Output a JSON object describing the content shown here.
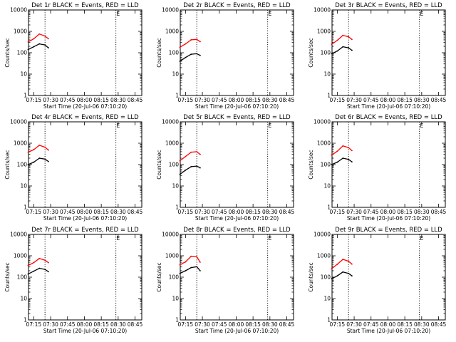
{
  "layout_spec": {
    "x_domain_min": [
      7,
      10,
      20
    ],
    "x_domain_max": [
      8,
      51,
      0
    ]
  },
  "chart_data": [
    {
      "type": "line",
      "title": "Det 1r BLACK = Events, RED = LLD",
      "xlabel": "Start Time (20-Jul-06 07:10:20)",
      "ylabel": "Counts/sec",
      "x_ticks": [
        "07:15",
        "07:30",
        "07:45",
        "08:00",
        "08:15",
        "08:30",
        "08:45"
      ],
      "y_ticks": [
        "1",
        "10",
        "100",
        "1000",
        "10000"
      ],
      "yscale": "log",
      "ylim": [
        1,
        10000
      ],
      "vlines": [
        "07:25",
        "08:28"
      ],
      "e_marker": {
        "label": "E",
        "time": "08:30"
      },
      "series": [
        {
          "color": "#000000",
          "x": [
            "07:10",
            "07:15",
            "07:20",
            "07:25",
            "07:28"
          ],
          "values": [
            140,
            190,
            260,
            230,
            170
          ]
        },
        {
          "color": "#ff0000",
          "x": [
            "07:10",
            "07:15",
            "07:20",
            "07:25",
            "07:28"
          ],
          "values": [
            320,
            450,
            750,
            600,
            450
          ]
        }
      ]
    },
    {
      "type": "line",
      "title": "Det 2r BLACK = Events, RED = LLD",
      "xlabel": "Start Time (20-Jul-06 07:10:20)",
      "ylabel": "Counts/sec",
      "x_ticks": [
        "07:15",
        "07:30",
        "07:45",
        "08:00",
        "08:15",
        "08:30",
        "08:45"
      ],
      "y_ticks": [
        "1",
        "10",
        "100",
        "1000",
        "10000"
      ],
      "yscale": "log",
      "ylim": [
        1,
        10000
      ],
      "vlines": [
        "07:25",
        "08:28"
      ],
      "e_marker": {
        "label": "E",
        "time": "08:30"
      },
      "series": [
        {
          "color": "#000000",
          "x": [
            "07:10",
            "07:15",
            "07:20",
            "07:25",
            "07:28"
          ],
          "values": [
            40,
            60,
            85,
            90,
            75
          ]
        },
        {
          "color": "#ff0000",
          "x": [
            "07:10",
            "07:15",
            "07:20",
            "07:25",
            "07:28"
          ],
          "values": [
            180,
            260,
            400,
            420,
            330
          ]
        }
      ]
    },
    {
      "type": "line",
      "title": "Det 3r BLACK = Events, RED = LLD",
      "xlabel": "Start Time (20-Jul-06 07:10:20)",
      "ylabel": "Counts/sec",
      "x_ticks": [
        "07:15",
        "07:30",
        "07:45",
        "08:00",
        "08:15",
        "08:30",
        "08:45"
      ],
      "y_ticks": [
        "1",
        "10",
        "100",
        "1000",
        "10000"
      ],
      "yscale": "log",
      "ylim": [
        1,
        10000
      ],
      "vlines": [
        "07:25",
        "08:28"
      ],
      "e_marker": {
        "label": "E",
        "time": "08:30"
      },
      "series": [
        {
          "color": "#000000",
          "x": [
            "07:10",
            "07:15",
            "07:20",
            "07:25",
            "07:28"
          ],
          "values": [
            90,
            120,
            190,
            170,
            130
          ]
        },
        {
          "color": "#ff0000",
          "x": [
            "07:10",
            "07:15",
            "07:20",
            "07:25",
            "07:28"
          ],
          "values": [
            250,
            380,
            650,
            560,
            420
          ]
        }
      ]
    },
    {
      "type": "line",
      "title": "Det 4r BLACK = Events, RED = LLD",
      "xlabel": "Start Time (20-Jul-06 07:10:20)",
      "ylabel": "Counts/sec",
      "x_ticks": [
        "07:15",
        "07:30",
        "07:45",
        "08:00",
        "08:15",
        "08:30",
        "08:45"
      ],
      "y_ticks": [
        "1",
        "10",
        "100",
        "1000",
        "10000"
      ],
      "yscale": "log",
      "ylim": [
        1,
        10000
      ],
      "vlines": [
        "07:25",
        "08:28"
      ],
      "e_marker": {
        "label": "E",
        "time": "08:30"
      },
      "series": [
        {
          "color": "#000000",
          "x": [
            "07:10",
            "07:15",
            "07:20",
            "07:25",
            "07:28"
          ],
          "values": [
            100,
            130,
            200,
            180,
            140
          ]
        },
        {
          "color": "#ff0000",
          "x": [
            "07:10",
            "07:15",
            "07:20",
            "07:25",
            "07:28"
          ],
          "values": [
            380,
            500,
            800,
            650,
            480
          ]
        }
      ]
    },
    {
      "type": "line",
      "title": "Det 5r BLACK = Events, RED = LLD",
      "xlabel": "Start Time (20-Jul-06 07:10:20)",
      "ylabel": "Counts/sec",
      "x_ticks": [
        "07:15",
        "07:30",
        "07:45",
        "08:00",
        "08:15",
        "08:30",
        "08:45"
      ],
      "y_ticks": [
        "1",
        "10",
        "100",
        "1000",
        "10000"
      ],
      "yscale": "log",
      "ylim": [
        1,
        10000
      ],
      "vlines": [
        "07:25",
        "08:28"
      ],
      "e_marker": {
        "label": "E",
        "time": "08:30"
      },
      "series": [
        {
          "color": "#000000",
          "x": [
            "07:10",
            "07:15",
            "07:20",
            "07:25",
            "07:28"
          ],
          "values": [
            35,
            55,
            80,
            85,
            70
          ]
        },
        {
          "color": "#ff0000",
          "x": [
            "07:10",
            "07:15",
            "07:20",
            "07:25",
            "07:28"
          ],
          "values": [
            150,
            240,
            380,
            400,
            300
          ]
        }
      ]
    },
    {
      "type": "line",
      "title": "Det 6r BLACK = Events, RED = LLD",
      "xlabel": "Start Time (20-Jul-06 07:10:20)",
      "ylabel": "Counts/sec",
      "x_ticks": [
        "07:15",
        "07:30",
        "07:45",
        "08:00",
        "08:15",
        "08:30",
        "08:45"
      ],
      "y_ticks": [
        "1",
        "10",
        "100",
        "1000",
        "10000"
      ],
      "yscale": "log",
      "ylim": [
        1,
        10000
      ],
      "vlines": [
        "07:25",
        "08:28"
      ],
      "e_marker": {
        "label": "E",
        "time": "08:30"
      },
      "series": [
        {
          "color": "#000000",
          "x": [
            "07:10",
            "07:15",
            "07:20",
            "07:25",
            "07:28"
          ],
          "values": [
            100,
            130,
            200,
            175,
            135
          ]
        },
        {
          "color": "#ff0000",
          "x": [
            "07:10",
            "07:15",
            "07:20",
            "07:25",
            "07:28"
          ],
          "values": [
            280,
            420,
            750,
            620,
            450
          ]
        }
      ]
    },
    {
      "type": "line",
      "title": "Det 7r BLACK = Events, RED = LLD",
      "xlabel": "Start Time (20-Jul-06 07:10:20)",
      "ylabel": "Counts/sec",
      "x_ticks": [
        "07:15",
        "07:30",
        "07:45",
        "08:00",
        "08:15",
        "08:30",
        "08:45"
      ],
      "y_ticks": [
        "1",
        "10",
        "100",
        "1000",
        "10000"
      ],
      "yscale": "log",
      "ylim": [
        1,
        10000
      ],
      "vlines": [
        "07:25",
        "08:28"
      ],
      "e_marker": {
        "label": "E",
        "time": "08:30"
      },
      "series": [
        {
          "color": "#000000",
          "x": [
            "07:10",
            "07:15",
            "07:20",
            "07:25",
            "07:28"
          ],
          "values": [
            140,
            190,
            260,
            230,
            180
          ]
        },
        {
          "color": "#ff0000",
          "x": [
            "07:10",
            "07:15",
            "07:20",
            "07:25",
            "07:28"
          ],
          "values": [
            350,
            480,
            750,
            620,
            480
          ]
        }
      ]
    },
    {
      "type": "line",
      "title": "Det 8r BLACK = Events, RED = LLD",
      "xlabel": "Start Time (20-Jul-06 07:10:20)",
      "ylabel": "Counts/sec",
      "x_ticks": [
        "07:15",
        "07:30",
        "07:45",
        "08:00",
        "08:15",
        "08:30",
        "08:45"
      ],
      "y_ticks": [
        "1",
        "10",
        "100",
        "1000",
        "10000"
      ],
      "yscale": "log",
      "ylim": [
        1,
        10000
      ],
      "vlines": [
        "07:25",
        "08:28"
      ],
      "e_marker": {
        "label": "E",
        "time": "08:30"
      },
      "series": [
        {
          "color": "#000000",
          "x": [
            "07:10",
            "07:15",
            "07:20",
            "07:25",
            "07:28"
          ],
          "values": [
            150,
            200,
            280,
            310,
            200
          ]
        },
        {
          "color": "#ff0000",
          "x": [
            "07:10",
            "07:15",
            "07:20",
            "07:25",
            "07:28"
          ],
          "values": [
            380,
            520,
            950,
            900,
            500
          ]
        }
      ]
    },
    {
      "type": "line",
      "title": "Det 9r BLACK = Events, RED = LLD",
      "xlabel": "Start Time (20-Jul-06 07:10:20)",
      "ylabel": "Counts/sec",
      "x_ticks": [
        "07:15",
        "07:30",
        "07:45",
        "08:00",
        "08:15",
        "08:30",
        "08:45"
      ],
      "y_ticks": [
        "1",
        "10",
        "100",
        "1000",
        "10000"
      ],
      "yscale": "log",
      "ylim": [
        1,
        10000
      ],
      "vlines": [
        "07:25",
        "08:28"
      ],
      "e_marker": {
        "label": "E",
        "time": "08:30"
      },
      "series": [
        {
          "color": "#000000",
          "x": [
            "07:10",
            "07:15",
            "07:20",
            "07:25",
            "07:28"
          ],
          "values": [
            85,
            115,
            175,
            150,
            115
          ]
        },
        {
          "color": "#ff0000",
          "x": [
            "07:10",
            "07:15",
            "07:20",
            "07:25",
            "07:28"
          ],
          "values": [
            250,
            400,
            680,
            560,
            410
          ]
        }
      ]
    }
  ]
}
